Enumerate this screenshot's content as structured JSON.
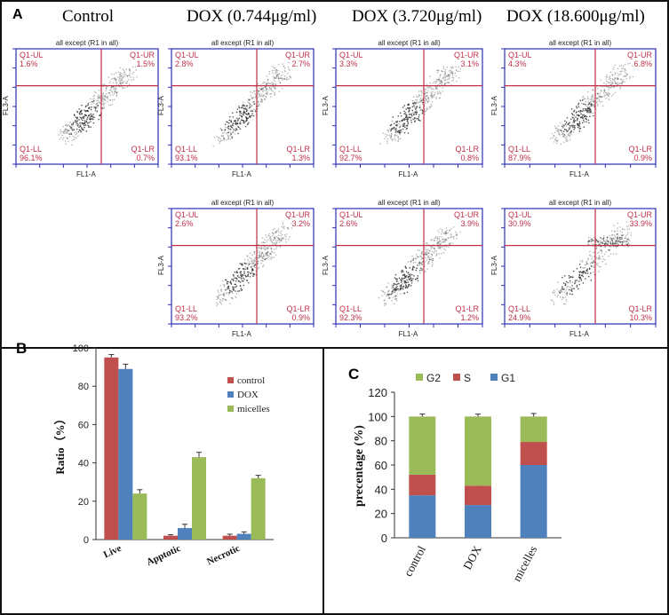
{
  "panel_a": {
    "label": "A",
    "column_titles": [
      "Control",
      "DOX (0.744μg/ml)",
      "DOX (3.720μg/ml)",
      "DOX (18.600μg/ml)"
    ],
    "plot_title": "all except (R1 in all)",
    "x_axis_label": "FL1-A",
    "y_axis_label": "FL3-A",
    "quadrant_names": {
      "ul": "Q1-UL",
      "ur": "Q1-UR",
      "ll": "Q1-LL",
      "lr": "Q1-LR"
    },
    "plots": [
      {
        "ul": "1.6%",
        "ur": "1.5%",
        "ll": "96.1%",
        "lr": "0.7%"
      },
      {
        "ul": "2.8%",
        "ur": "2.7%",
        "ll": "93.1%",
        "lr": "1.3%"
      },
      {
        "ul": "3.3%",
        "ur": "3.1%",
        "ll": "92.7%",
        "lr": "0.8%"
      },
      {
        "ul": "4.3%",
        "ur": "6.8%",
        "ll": "87.9%",
        "lr": "0.9%"
      },
      {
        "ul": "2.6%",
        "ur": "3.2%",
        "ll": "93.2%",
        "lr": "0.9%"
      },
      {
        "ul": "2.6%",
        "ur": "3.9%",
        "ll": "92.3%",
        "lr": "1.2%"
      },
      {
        "ul": "30.9%",
        "ur": "33.9%",
        "ll": "24.9%",
        "lr": "10.3%"
      }
    ]
  },
  "chart_data": [
    {
      "panel": "B",
      "type": "bar",
      "ylabel": "Ratio（%）",
      "ylim": [
        0,
        100
      ],
      "yticks": [
        "0",
        "20",
        "40",
        "60",
        "80",
        "100"
      ],
      "categories": [
        "Live",
        "Apptotic",
        "Necrotic"
      ],
      "series": [
        {
          "name": "control",
          "color": "#c0504d",
          "values": [
            95,
            2,
            2
          ],
          "errors": [
            1.5,
            0.5,
            0.8
          ]
        },
        {
          "name": "DOX",
          "color": "#4f81bd",
          "values": [
            89,
            6,
            3
          ],
          "errors": [
            2.5,
            2,
            1
          ]
        },
        {
          "name": "micelles",
          "color": "#9bbb59",
          "values": [
            24,
            43,
            32
          ],
          "errors": [
            2,
            2.5,
            1.5
          ]
        }
      ],
      "legend": "top-right"
    },
    {
      "panel": "C",
      "type": "bar",
      "stacked": true,
      "ylabel": "precentage (%)",
      "ylim": [
        0,
        120
      ],
      "yticks": [
        "0",
        "20",
        "40",
        "60",
        "80",
        "100",
        "120"
      ],
      "categories": [
        "control",
        "DOX",
        "micelles"
      ],
      "series": [
        {
          "name": "G1",
          "color": "#4f81bd",
          "values": [
            35,
            27,
            60
          ],
          "errors": [
            3,
            2,
            3
          ]
        },
        {
          "name": "S",
          "color": "#c0504d",
          "values": [
            17,
            16,
            19
          ],
          "errors": [
            3,
            2,
            3
          ]
        },
        {
          "name": "G2",
          "color": "#9bbb59",
          "values": [
            48,
            57,
            21
          ],
          "errors": [
            2,
            2,
            2.5
          ]
        }
      ],
      "legend_order": [
        "G2",
        "S",
        "G1"
      ],
      "legend": "top"
    }
  ]
}
